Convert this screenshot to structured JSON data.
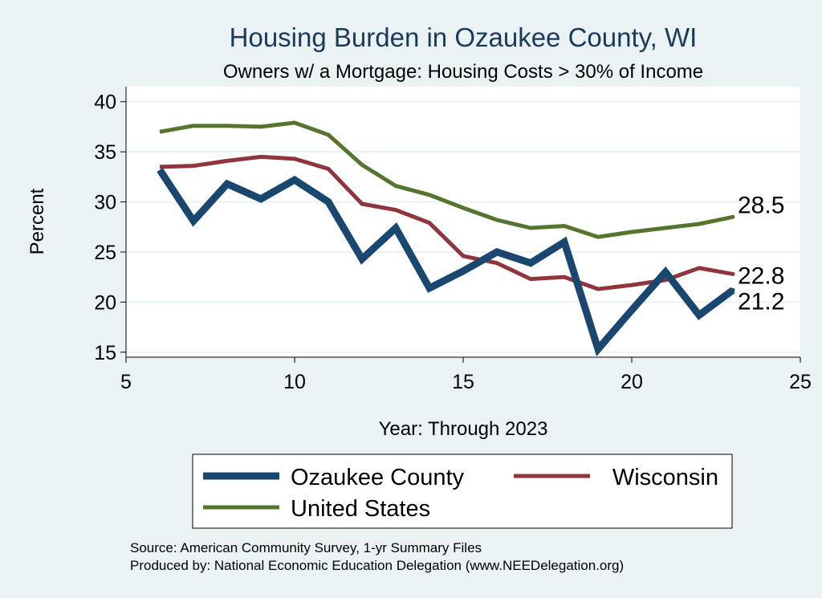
{
  "chart_data": {
    "type": "line",
    "title": "Housing Burden in Ozaukee County, WI",
    "subtitle": "Owners w/ a Mortgage: Housing Costs > 30% of Income",
    "xlabel": "Year: Through 2023",
    "ylabel": "Percent",
    "xlim": [
      5,
      25
    ],
    "ylim": [
      14.5,
      41.5
    ],
    "xticks": [
      5,
      10,
      15,
      20,
      25
    ],
    "yticks": [
      15,
      20,
      25,
      30,
      35,
      40
    ],
    "grid": true,
    "legend_position": "bottom",
    "series": [
      {
        "name": "Ozaukee County",
        "color": "#1a476f",
        "x": [
          6,
          7,
          8,
          9,
          10,
          11,
          12,
          13,
          14,
          15,
          16,
          17,
          18,
          19,
          20,
          21,
          22,
          23
        ],
        "values": [
          33.2,
          28.1,
          31.8,
          30.3,
          32.2,
          30.0,
          24.3,
          27.4,
          21.4,
          23.1,
          25.0,
          23.9,
          26.0,
          15.3,
          19.2,
          23.0,
          18.7,
          21.2
        ],
        "end_label": "21.2"
      },
      {
        "name": "Wisconsin",
        "color": "#90353b",
        "x": [
          6,
          7,
          8,
          9,
          10,
          11,
          12,
          13,
          14,
          15,
          16,
          17,
          18,
          19,
          20,
          21,
          22,
          23
        ],
        "values": [
          33.5,
          33.6,
          34.1,
          34.5,
          34.3,
          33.3,
          29.8,
          29.2,
          27.9,
          24.6,
          23.9,
          22.3,
          22.5,
          21.3,
          21.7,
          22.2,
          23.4,
          22.8
        ],
        "end_label": "22.8"
      },
      {
        "name": "United States",
        "color": "#55752f",
        "x": [
          6,
          7,
          8,
          9,
          10,
          11,
          12,
          13,
          14,
          15,
          16,
          17,
          18,
          19,
          20,
          21,
          22,
          23
        ],
        "values": [
          37.0,
          37.6,
          37.6,
          37.5,
          37.9,
          36.7,
          33.7,
          31.6,
          30.7,
          29.4,
          28.2,
          27.4,
          27.6,
          26.5,
          27.0,
          27.4,
          27.8,
          28.5
        ],
        "end_label": "28.5"
      }
    ],
    "notes": [
      "Source: American Community Survey, 1-yr Summary Files",
      "Produced by: National Economic Education Delegation (www.NEEDelegation.org)"
    ]
  }
}
